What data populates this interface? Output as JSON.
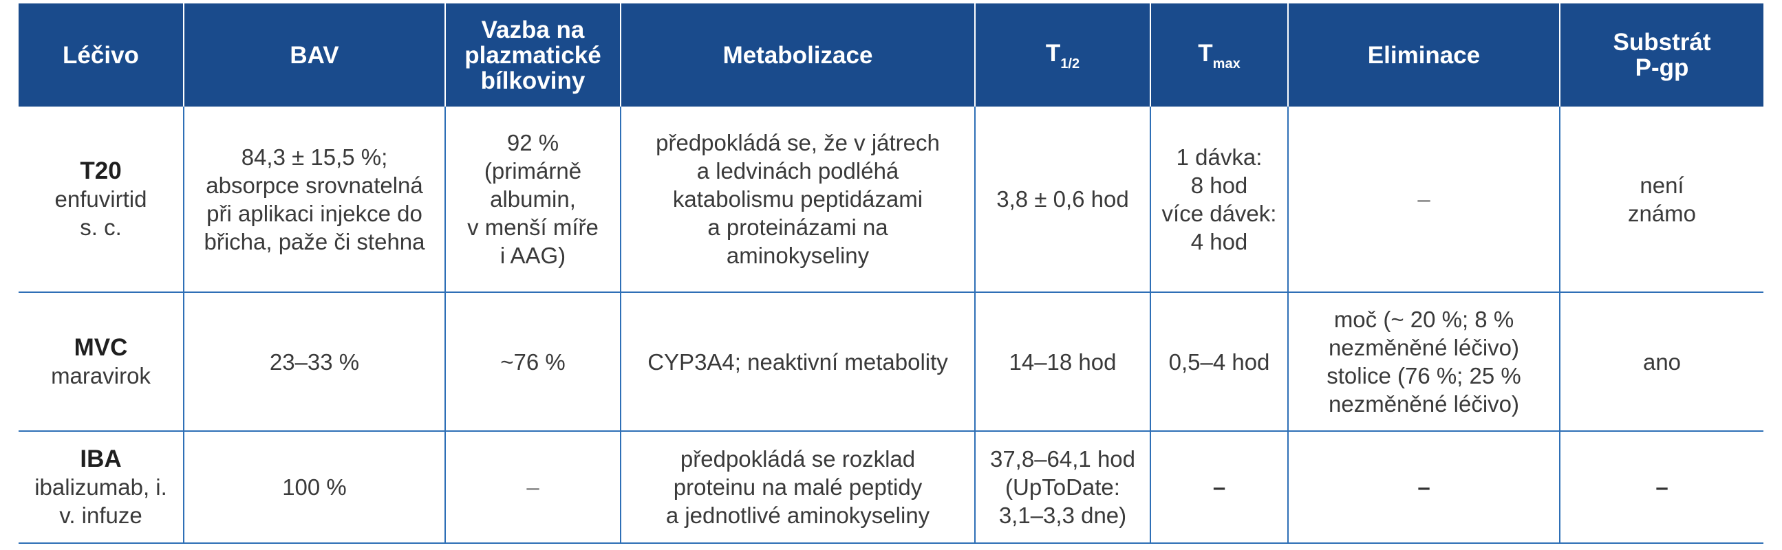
{
  "table": {
    "headers": {
      "drug": "Léčivo",
      "bav": "BAV",
      "binding": "Vazba na\nplazmatické\nbílkoviny",
      "metabolism": "Metabolizace",
      "t_half_main": "T",
      "t_half_sub": "1/2",
      "t_max_main": "T",
      "t_max_sub": "max",
      "elimination": "Eliminace",
      "pgp": "Substrát\nP-gp"
    },
    "rows": [
      {
        "drug_abbr": "T20",
        "drug_name": "enfuvirtid\ns. c.",
        "bav": "84,3 ± 15,5 %;\nabsorpce srovnatelná\npři aplikaci injekce do\nbřicha, paže či stehna",
        "binding": "92 %\n(primárně\nalbumin,\nv menší míře\ni AAG)",
        "metabolism": "předpokládá se, že v játrech\na ledvinách podléhá\nkatabolismu peptidázami\na proteinázami na\naminokyseliny",
        "t_half": "3,8 ± 0,6 hod",
        "t_max": "1 dávka:\n8 hod\nvíce dávek:\n4 hod",
        "elimination": "–",
        "pgp": "není\nznámo"
      },
      {
        "drug_abbr": "MVC",
        "drug_name": "maravirok",
        "bav": "23–33 %",
        "binding": "~76 %",
        "metabolism": "CYP3A4; neaktivní metabolity",
        "t_half": "14–18 hod",
        "t_max": "0,5–4 hod",
        "elimination": "moč (~ 20 %; 8 %\nnezměněné léčivo)\nstolice (76 %; 25 %\nnezměněné léčivo)",
        "pgp": "ano"
      },
      {
        "drug_abbr": "IBA",
        "drug_name": "ibalizumab, i.\nv. infuze",
        "bav": "100 %",
        "binding": "–",
        "metabolism": "předpokládá se rozklad\nproteinu na malé peptidy\na jednotlivé aminokyseliny",
        "t_half": "37,8–64,1 hod\n(UpToDate:\n3,1–3,3 dne)",
        "t_max": "–",
        "elimination": "–",
        "pgp": "–"
      }
    ]
  },
  "colors": {
    "header_bg": "#1a4b8c",
    "grid_line": "#2e6fb6",
    "text": "#3a3a3a"
  }
}
